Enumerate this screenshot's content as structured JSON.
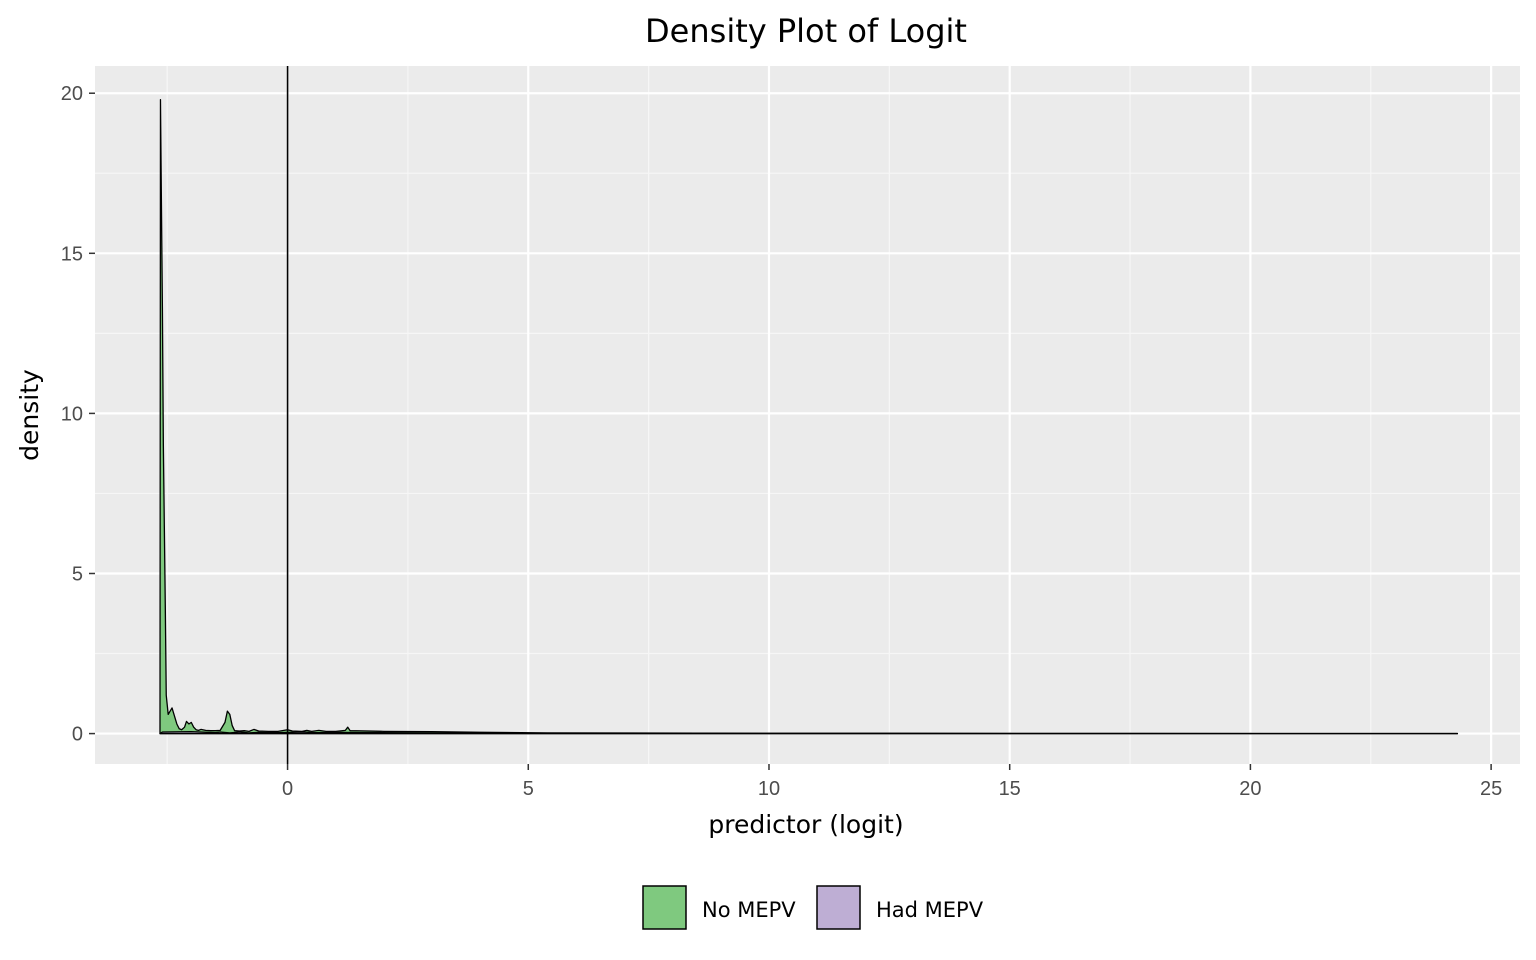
{
  "chart_data": {
    "type": "area",
    "title": "Density Plot of Logit",
    "xlabel": "predictor (logit)",
    "ylabel": "density",
    "xlim": [
      -4,
      25.6
    ],
    "ylim": [
      -0.95,
      20.85
    ],
    "x_ticks": [
      0,
      5,
      10,
      15,
      20,
      25
    ],
    "y_ticks": [
      0,
      5,
      10,
      15,
      20
    ],
    "x_tick_labels": [
      "0",
      "5",
      "10",
      "15",
      "20",
      "25"
    ],
    "y_tick_labels": [
      "0",
      "5",
      "10",
      "15",
      "20"
    ],
    "vline": 0,
    "grid": true,
    "legend_position": "bottom",
    "series": [
      {
        "name": "No MEPV",
        "color": "#7fc97f",
        "points": [
          [
            -2.65,
            0
          ],
          [
            -2.64,
            19.8
          ],
          [
            -2.62,
            16.5
          ],
          [
            -2.6,
            13.3
          ],
          [
            -2.58,
            9.0
          ],
          [
            -2.56,
            6.5
          ],
          [
            -2.54,
            4.0
          ],
          [
            -2.52,
            1.2
          ],
          [
            -2.48,
            0.6
          ],
          [
            -2.44,
            0.7
          ],
          [
            -2.4,
            0.8
          ],
          [
            -2.36,
            0.6
          ],
          [
            -2.3,
            0.3
          ],
          [
            -2.25,
            0.15
          ],
          [
            -2.2,
            0.12
          ],
          [
            -2.14,
            0.2
          ],
          [
            -2.1,
            0.38
          ],
          [
            -2.05,
            0.3
          ],
          [
            -2.0,
            0.35
          ],
          [
            -1.95,
            0.2
          ],
          [
            -1.9,
            0.12
          ],
          [
            -1.85,
            0.1
          ],
          [
            -1.8,
            0.13
          ],
          [
            -1.7,
            0.1
          ],
          [
            -1.6,
            0.09
          ],
          [
            -1.5,
            0.09
          ],
          [
            -1.4,
            0.1
          ],
          [
            -1.3,
            0.35
          ],
          [
            -1.25,
            0.7
          ],
          [
            -1.2,
            0.6
          ],
          [
            -1.15,
            0.25
          ],
          [
            -1.1,
            0.09
          ],
          [
            -1.0,
            0.08
          ],
          [
            -0.9,
            0.09
          ],
          [
            -0.8,
            0.07
          ],
          [
            -0.7,
            0.13
          ],
          [
            -0.6,
            0.08
          ],
          [
            -0.4,
            0.07
          ],
          [
            -0.2,
            0.07
          ],
          [
            0.0,
            0.12
          ],
          [
            0.1,
            0.08
          ],
          [
            0.3,
            0.07
          ],
          [
            0.4,
            0.1
          ],
          [
            0.5,
            0.07
          ],
          [
            0.65,
            0.1
          ],
          [
            0.8,
            0.07
          ],
          [
            1.0,
            0.07
          ],
          [
            1.2,
            0.1
          ],
          [
            1.25,
            0.2
          ],
          [
            1.3,
            0.09
          ],
          [
            2.0,
            0.07
          ],
          [
            3.0,
            0.06
          ],
          [
            4.0,
            0.04
          ],
          [
            5.4,
            0.02
          ],
          [
            10.0,
            0.01
          ],
          [
            24.3,
            0.0
          ]
        ]
      },
      {
        "name": "Had MEPV",
        "color": "#beaed4",
        "points": [
          [
            -2.65,
            0
          ],
          [
            -2.6,
            0.05
          ],
          [
            -2.0,
            0.06
          ],
          [
            -1.5,
            0.03
          ],
          [
            -1.4,
            0.05
          ],
          [
            -1.2,
            0.02
          ],
          [
            -1.0,
            0.05
          ],
          [
            -0.8,
            0.02
          ],
          [
            -0.6,
            0.04
          ],
          [
            -0.2,
            0.03
          ],
          [
            0.3,
            0.05
          ],
          [
            0.6,
            0.03
          ],
          [
            1.0,
            0.04
          ],
          [
            1.5,
            0.03
          ],
          [
            3.1,
            0.02
          ],
          [
            5.0,
            0.01
          ],
          [
            10.0,
            0.005
          ],
          [
            24.3,
            0.0
          ]
        ]
      }
    ]
  }
}
